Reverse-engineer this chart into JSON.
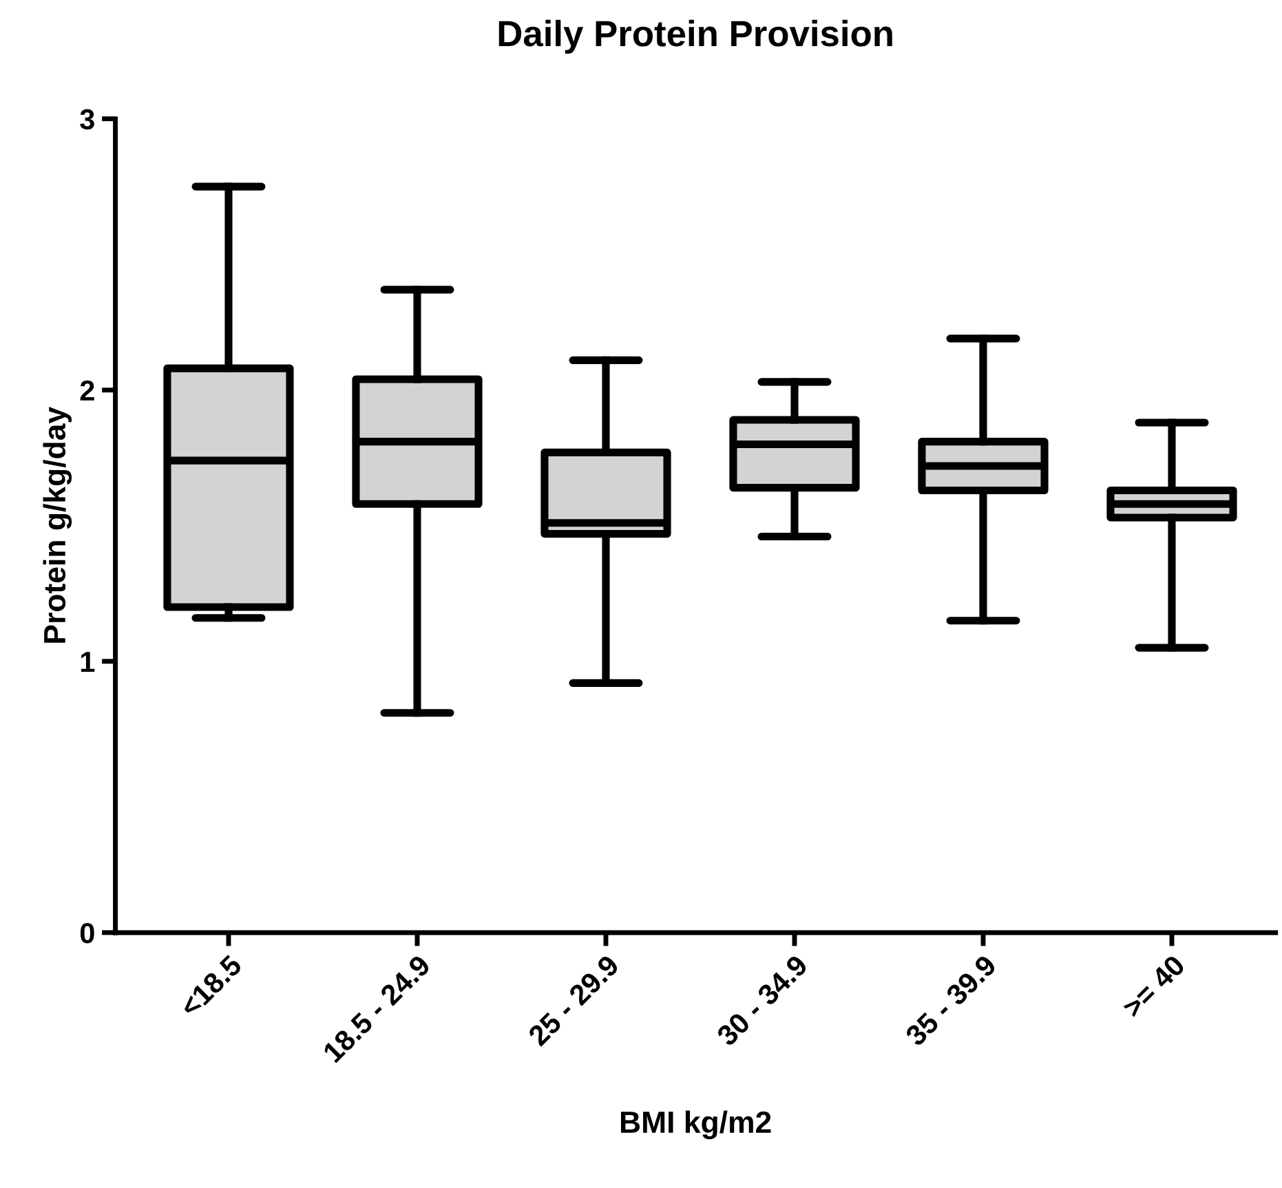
{
  "chart_data": {
    "type": "box",
    "title": "Daily Protein Provision",
    "xlabel": "BMI kg/m2",
    "ylabel": "Protein g/kg/day",
    "categories": [
      "<18.5",
      "18.5 - 24.9",
      "25 - 29.9",
      "30 - 34.9",
      "35 - 39.9",
      ">= 40"
    ],
    "color": "#d3d3d3",
    "boxes": [
      {
        "low": 1.16,
        "q1": 1.2,
        "median": 1.74,
        "q3": 2.08,
        "high": 2.75
      },
      {
        "low": 0.81,
        "q1": 1.58,
        "median": 1.81,
        "q3": 2.04,
        "high": 2.37
      },
      {
        "low": 0.92,
        "q1": 1.47,
        "median": 1.51,
        "q3": 1.77,
        "high": 2.11
      },
      {
        "low": 1.46,
        "q1": 1.64,
        "median": 1.8,
        "q3": 1.89,
        "high": 2.03
      },
      {
        "low": 1.15,
        "q1": 1.63,
        "median": 1.72,
        "q3": 1.81,
        "high": 2.19
      },
      {
        "low": 1.05,
        "q1": 1.53,
        "median": 1.58,
        "q3": 1.63,
        "high": 1.88
      }
    ],
    "ylim": [
      0,
      3
    ],
    "yticks": [
      0,
      1,
      2,
      3
    ],
    "grid": false
  }
}
